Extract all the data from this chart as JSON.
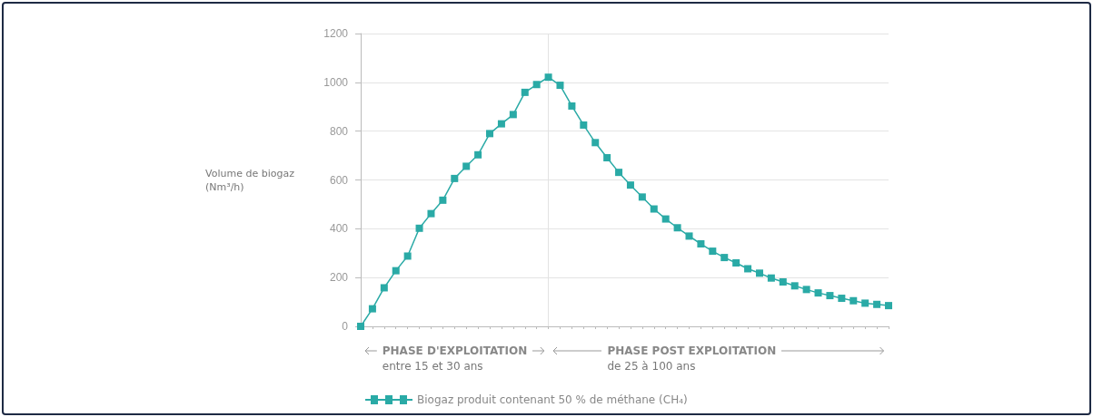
{
  "chart_data": {
    "type": "line",
    "ylabel": "Volume de biogaz (Nm³/h)",
    "categories": [
      null,
      null,
      null,
      null,
      null,
      null,
      null,
      null,
      null,
      null,
      null,
      null,
      null,
      null,
      null,
      null,
      null,
      null,
      null,
      null,
      null,
      null,
      null,
      null,
      null,
      null,
      null,
      null,
      null,
      null,
      null,
      null,
      null,
      null,
      null,
      null,
      null,
      null,
      null,
      null,
      null,
      null,
      null,
      null,
      null,
      null
    ],
    "series": [
      {
        "name": "Biogaz produit contenant 50 % de méthane (CH₄)",
        "color": "#2aaaa6",
        "values": [
          0,
          72,
          158,
          228,
          288,
          402,
          462,
          517,
          606,
          656,
          703,
          790,
          830,
          868,
          959,
          991,
          1021,
          988,
          903,
          825,
          753,
          691,
          631,
          579,
          530,
          481,
          440,
          404,
          370,
          338,
          308,
          282,
          260,
          236,
          218,
          198,
          182,
          166,
          151,
          137,
          126,
          115,
          105,
          95,
          90,
          85
        ]
      }
    ],
    "tick_labels": "y",
    "ylim": [
      0,
      1200
    ],
    "yticks": [
      0,
      200,
      400,
      600,
      800,
      1000,
      1200
    ],
    "grid": "y",
    "marker": "square",
    "line_style": "solid",
    "legend": "bottom left",
    "annotations": [
      "PHASE D'EXPLOITATION",
      "entre 15 et 30 ans",
      "PHASE POST EXPLOITATION",
      "de 25 à 100 ans"
    ]
  }
}
